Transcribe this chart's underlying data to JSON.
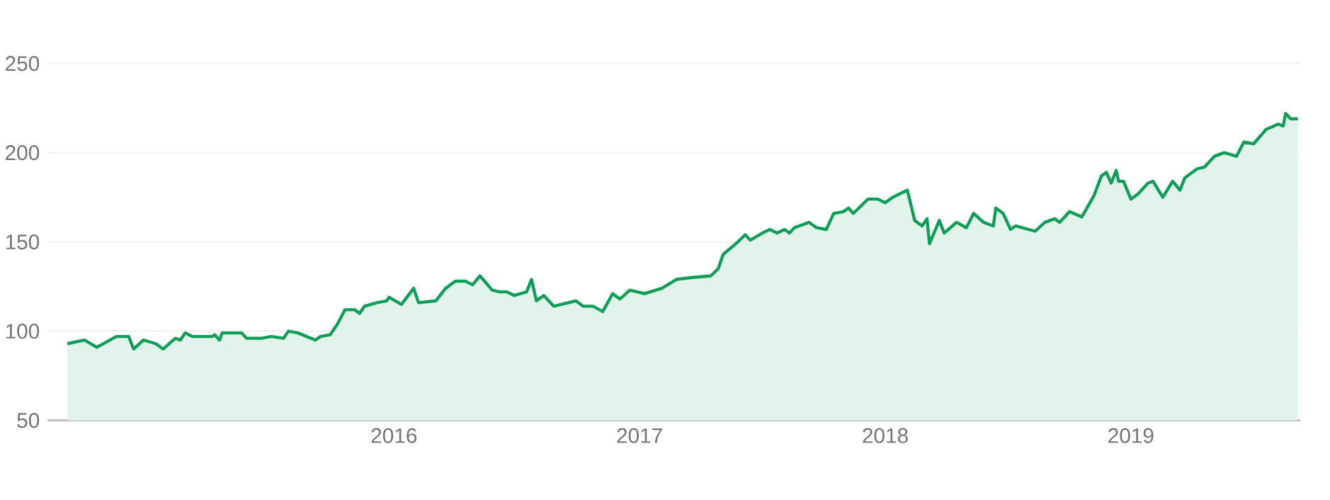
{
  "chart_data": {
    "type": "area",
    "x": [
      2014.67,
      2014.74,
      2014.79,
      2014.87,
      2014.92,
      2014.94,
      2014.98,
      2015.03,
      2015.06,
      2015.11,
      2015.13,
      2015.15,
      2015.18,
      2015.26,
      2015.27,
      2015.29,
      2015.3,
      2015.38,
      2015.4,
      2015.46,
      2015.5,
      2015.55,
      2015.57,
      2015.61,
      2015.68,
      2015.7,
      2015.74,
      2015.77,
      2015.8,
      2015.84,
      2015.86,
      2015.88,
      2015.93,
      2015.97,
      2015.98,
      2016.03,
      2016.08,
      2016.1,
      2016.17,
      2016.21,
      2016.25,
      2016.29,
      2016.32,
      2016.35,
      2016.4,
      2016.43,
      2016.46,
      2016.49,
      2016.54,
      2016.56,
      2016.58,
      2016.61,
      2016.65,
      2016.68,
      2016.74,
      2016.77,
      2016.81,
      2016.85,
      2016.89,
      2016.92,
      2016.96,
      2017.02,
      2017.09,
      2017.15,
      2017.21,
      2017.29,
      2017.32,
      2017.34,
      2017.4,
      2017.43,
      2017.45,
      2017.5,
      2017.53,
      2017.56,
      2017.59,
      2017.61,
      2017.63,
      2017.69,
      2017.72,
      2017.76,
      2017.79,
      2017.83,
      2017.85,
      2017.87,
      2017.93,
      2017.97,
      2018.0,
      2018.03,
      2018.06,
      2018.09,
      2018.12,
      2018.15,
      2018.17,
      2018.18,
      2018.22,
      2018.24,
      2018.29,
      2018.33,
      2018.36,
      2018.4,
      2018.44,
      2018.45,
      2018.48,
      2018.51,
      2018.53,
      2018.61,
      2018.65,
      2018.69,
      2018.71,
      2018.75,
      2018.8,
      2018.85,
      2018.88,
      2018.9,
      2018.92,
      2018.94,
      2018.95,
      2018.97,
      2019.0,
      2019.03,
      2019.07,
      2019.09,
      2019.13,
      2019.17,
      2019.2,
      2019.22,
      2019.27,
      2019.3,
      2019.34,
      2019.38,
      2019.43,
      2019.46,
      2019.5,
      2019.55,
      2019.6,
      2019.62,
      2019.63,
      2019.65,
      2019.68
    ],
    "values": [
      93,
      95,
      91,
      97,
      97,
      90,
      95,
      93,
      90,
      96,
      95,
      99,
      97,
      97,
      98,
      95,
      99,
      99,
      96,
      96,
      97,
      96,
      100,
      99,
      95,
      97,
      98,
      104,
      112,
      112,
      110,
      114,
      116,
      117,
      119,
      115,
      124,
      116,
      117,
      124,
      128,
      128,
      126,
      131,
      123,
      122,
      122,
      120,
      122,
      129,
      117,
      120,
      114,
      115,
      117,
      114,
      114,
      111,
      121,
      118,
      123,
      121,
      124,
      129,
      130,
      131,
      135,
      143,
      150,
      154,
      151,
      155,
      157,
      155,
      157,
      155,
      158,
      161,
      158,
      157,
      166,
      167,
      169,
      166,
      174,
      174,
      172,
      175,
      177,
      179,
      162,
      159,
      163,
      149,
      162,
      155,
      161,
      158,
      166,
      161,
      159,
      169,
      166,
      157,
      159,
      156,
      161,
      163,
      161,
      167,
      164,
      176,
      187,
      189,
      183,
      190,
      184,
      184,
      174,
      177,
      183,
      184,
      175,
      184,
      179,
      186,
      191,
      192,
      198,
      200,
      198,
      206,
      205,
      213,
      216,
      215,
      222,
      219,
      219
    ],
    "color": "#0f9d58",
    "xlim": [
      2014.59,
      2019.69
    ],
    "ylim": [
      50,
      250
    ],
    "xticks": [
      2016,
      2017,
      2018,
      2019
    ],
    "yticks": [
      50,
      100,
      150,
      200,
      250
    ],
    "grid": "y"
  }
}
